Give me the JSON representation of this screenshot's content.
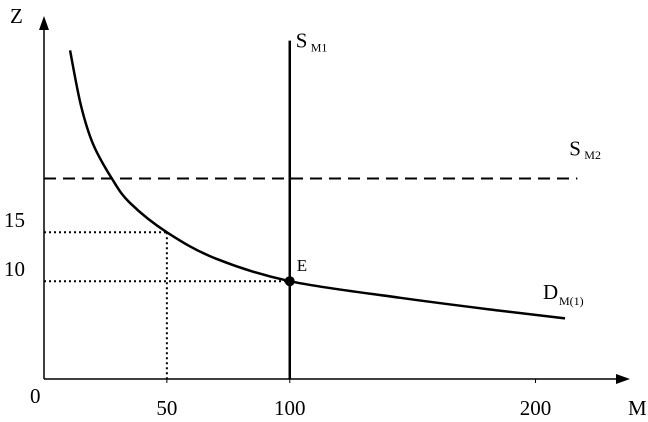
{
  "chart_data": {
    "type": "line",
    "x_label": "M",
    "y_label": "Z",
    "origin_label": "0",
    "xlim": [
      0,
      236
    ],
    "ylim": [
      0,
      36.5
    ],
    "xticks": [
      50,
      100,
      200
    ],
    "yticks": [
      10,
      15
    ],
    "series": [
      {
        "name": "D",
        "subscript": "M(1)",
        "color": "#000000",
        "x": [
          10.6,
          15,
          20,
          27.6,
          35,
          50,
          70,
          100,
          145,
          185,
          212
        ],
        "values": [
          33.6,
          28,
          24,
          20.5,
          18,
          15,
          12.3,
          10,
          8.3,
          7.0,
          6.2
        ]
      }
    ],
    "supply_vertical": {
      "name": "S",
      "subscript": "M1",
      "x": 100,
      "y_end": 34.6,
      "color": "#000000"
    },
    "supply_horizontal": {
      "name": "S",
      "subscript": "M2",
      "y": 20.5,
      "x_end": 217,
      "dashed": true,
      "color": "#000000"
    },
    "guides": [
      {
        "x": 50,
        "y": 15
      },
      {
        "x": 100,
        "y": 10
      }
    ],
    "point": {
      "label": "E",
      "x": 100,
      "y": 10
    }
  }
}
